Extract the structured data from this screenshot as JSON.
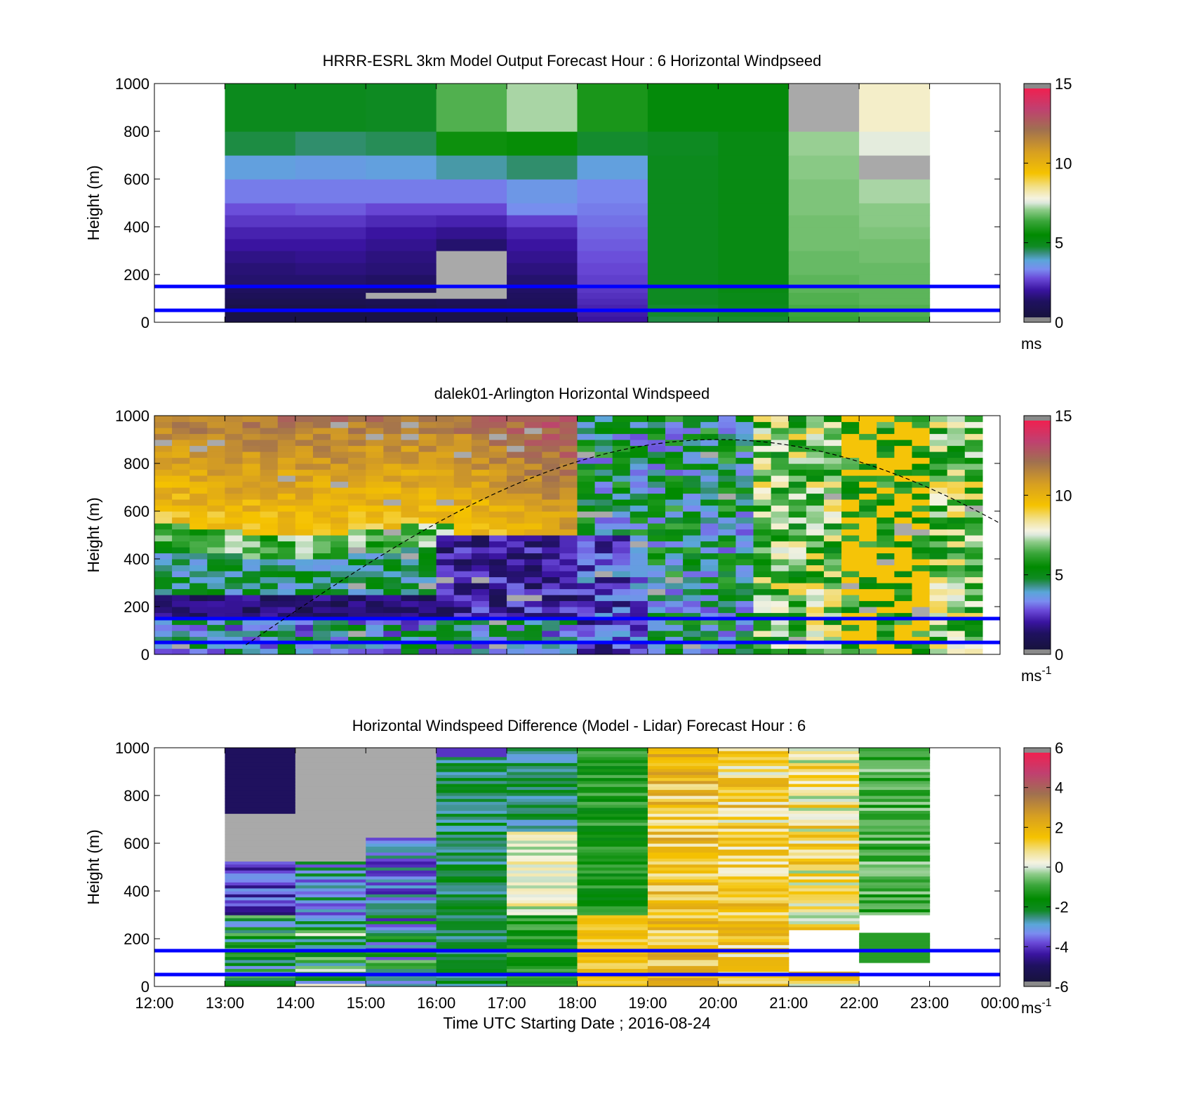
{
  "chart_data": [
    {
      "type": "heatmap",
      "title": "HRRR-ESRL 3km Model Output   Forecast Hour : 6 Horizontal Windpseed",
      "ylabel": "Height (m)",
      "xlabel": "",
      "ylim": [
        0,
        1000
      ],
      "yticks": [
        "0",
        "200",
        "400",
        "600",
        "800",
        "1000"
      ],
      "xticks": [],
      "colorbar": {
        "min": 0,
        "max": 15,
        "ticks": [
          "0",
          "5",
          "10",
          "15"
        ],
        "unit": "ms",
        "unit_sup": "",
        "scale": "speed"
      },
      "reference_lines_m": [
        50,
        150
      ],
      "dashed_curve": false,
      "grid": "model",
      "x_start_hour": 13,
      "col_width_hours": 1,
      "row_bottoms_m": [
        0,
        25,
        50,
        75,
        100,
        125,
        150,
        200,
        250,
        300,
        350,
        400,
        450,
        500,
        600,
        700,
        800,
        1000
      ],
      "columns": [
        [
          0.3,
          0.3,
          0.4,
          0.6,
          0.8,
          1.0,
          1.2,
          1.3,
          1.5,
          1.8,
          2.0,
          2.3,
          2.6,
          3.0,
          3.6,
          4.5,
          4.8
        ],
        [
          0.2,
          0.2,
          0.4,
          0.6,
          0.8,
          1.0,
          1.2,
          1.4,
          1.6,
          1.8,
          2.0,
          2.3,
          2.7,
          3.0,
          3.5,
          4.3,
          4.8
        ],
        [
          0.3,
          0.3,
          0.5,
          0.7,
          -1,
          0.9,
          1.1,
          1.3,
          1.4,
          1.6,
          1.8,
          2.1,
          2.5,
          3.0,
          3.6,
          4.4,
          4.7
        ],
        [
          0.4,
          0.4,
          0.6,
          0.8,
          -1,
          -1,
          -1,
          -1,
          -1,
          1.2,
          1.6,
          2.0,
          2.5,
          3.0,
          4.0,
          5.6,
          6.5
        ],
        [
          0.4,
          0.5,
          0.7,
          0.9,
          1.0,
          1.1,
          1.2,
          1.4,
          1.6,
          1.8,
          2.0,
          2.4,
          3.2,
          3.4,
          4.3,
          5.5,
          7.2
        ],
        [
          1.8,
          1.9,
          2.0,
          2.1,
          2.2,
          2.3,
          2.4,
          2.5,
          2.6,
          2.7,
          2.8,
          2.9,
          3.0,
          3.1,
          3.6,
          4.6,
          5.8
        ],
        [
          4.5,
          4.6,
          4.6,
          4.7,
          4.7,
          4.7,
          4.8,
          4.8,
          4.8,
          4.8,
          4.8,
          4.8,
          4.8,
          4.8,
          4.8,
          4.7,
          5.2
        ],
        [
          4.6,
          4.7,
          4.8,
          4.9,
          4.9,
          5.0,
          5.0,
          5.0,
          5.0,
          5.0,
          5.0,
          5.0,
          5.0,
          5.0,
          5.0,
          5.0,
          5.2
        ],
        [
          6.2,
          6.3,
          6.4,
          6.5,
          6.5,
          6.6,
          6.6,
          6.7,
          6.7,
          6.8,
          6.8,
          6.8,
          6.9,
          6.9,
          7.0,
          7.1,
          -1
        ],
        [
          6.4,
          6.5,
          6.5,
          6.6,
          6.6,
          6.6,
          6.7,
          6.7,
          6.8,
          6.8,
          6.9,
          7.0,
          7.0,
          7.2,
          -1,
          7.6,
          8.0
        ]
      ]
    },
    {
      "type": "heatmap",
      "title": "dalek01-Arlington  Horizontal Windspeed",
      "ylabel": "Height (m)",
      "xlabel": "",
      "ylim": [
        0,
        1000
      ],
      "yticks": [
        "0",
        "200",
        "400",
        "600",
        "800",
        "1000"
      ],
      "xticks": [],
      "colorbar": {
        "min": 0,
        "max": 15,
        "ticks": [
          "0",
          "5",
          "10",
          "15"
        ],
        "unit": "ms",
        "unit_sup": "-1",
        "scale": "speed"
      },
      "reference_lines_m": [
        50,
        150
      ],
      "dashed_curve": true,
      "grid": "lidar",
      "x_start_hour": 12,
      "col_width_hours": 0.25,
      "row_height_m": 25
    },
    {
      "type": "heatmap",
      "title": "Horizontal Windspeed Difference (Model - Lidar) Forecast Hour : 6",
      "ylabel": "Height (m)",
      "xlabel": "Time UTC  Starting Date ; 2016-08-24",
      "ylim": [
        0,
        1000
      ],
      "yticks": [
        "0",
        "200",
        "400",
        "600",
        "800",
        "1000"
      ],
      "xticks": [
        "12:00",
        "13:00",
        "14:00",
        "15:00",
        "16:00",
        "17:00",
        "18:00",
        "19:00",
        "20:00",
        "21:00",
        "22:00",
        "23:00",
        "00:00"
      ],
      "colorbar": {
        "min": -6,
        "max": 6,
        "ticks": [
          "-6",
          "-4",
          "-2",
          "0",
          "2",
          "4",
          "6"
        ],
        "unit": "ms",
        "unit_sup": "-1",
        "scale": "diff"
      },
      "reference_lines_m": [
        50,
        150
      ],
      "dashed_curve": false,
      "grid": "diff",
      "x_start_hour": 13,
      "col_width_hours": 1,
      "row_height_m": 12.5
    }
  ]
}
